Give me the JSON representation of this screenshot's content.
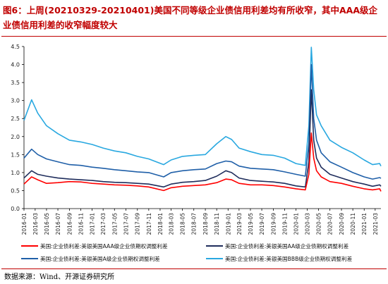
{
  "title": "图6：上周(20210329-20210401)美国不同等级企业债信用利差均有所收窄，其中AAA级企业债信用利差的收窄幅度较大",
  "source": "数据来源：Wind、开源证券研究所",
  "chart_data": {
    "type": "line",
    "ylim": [
      0,
      4.5
    ],
    "yticks": [
      "0.0",
      "0.5",
      "1.0",
      "1.5",
      "2.0",
      "2.5",
      "3.0",
      "3.5",
      "4.0",
      "4.5"
    ],
    "xticks": [
      "2016-01",
      "2016-03",
      "2016-05",
      "2016-07",
      "2016-09",
      "2016-11",
      "2017-01",
      "2017-03",
      "2017-05",
      "2017-07",
      "2017-09",
      "2017-11",
      "2018-01",
      "2018-03",
      "2018-05",
      "2018-07",
      "2018-09",
      "2018-11",
      "2019-01",
      "2019-03",
      "2019-05",
      "2019-07",
      "2019-09",
      "2019-11",
      "2020-01",
      "2020-03",
      "2020-05",
      "2020-07",
      "2020-09",
      "2020-11",
      "2021-01",
      "2021-03"
    ],
    "x_range": [
      "2016-01-01",
      "2021-04-01"
    ],
    "grid": false,
    "legend_position": "bottom",
    "series": [
      {
        "name": "美国:企业债利差:美银美国AAA级企业债期权调整利差",
        "color": "#ff0000",
        "x": [
          "2016-01-01",
          "2016-02-11",
          "2016-03-15",
          "2016-05-01",
          "2016-07-01",
          "2016-09-01",
          "2016-11-01",
          "2017-01-01",
          "2017-03-01",
          "2017-05-01",
          "2017-07-01",
          "2017-09-01",
          "2017-11-01",
          "2018-01-20",
          "2018-03-01",
          "2018-05-01",
          "2018-07-01",
          "2018-09-01",
          "2018-11-01",
          "2018-12-20",
          "2019-01-20",
          "2019-03-01",
          "2019-05-01",
          "2019-07-01",
          "2019-09-01",
          "2019-11-01",
          "2020-01-01",
          "2020-02-20",
          "2020-03-10",
          "2020-03-23",
          "2020-04-05",
          "2020-04-20",
          "2020-05-15",
          "2020-07-01",
          "2020-09-01",
          "2020-11-01",
          "2021-01-01",
          "2021-02-15",
          "2021-03-25",
          "2021-04-01"
        ],
        "values": [
          0.68,
          0.88,
          0.8,
          0.7,
          0.72,
          0.75,
          0.74,
          0.7,
          0.68,
          0.66,
          0.65,
          0.63,
          0.6,
          0.5,
          0.58,
          0.62,
          0.64,
          0.66,
          0.72,
          0.82,
          0.8,
          0.7,
          0.66,
          0.66,
          0.64,
          0.6,
          0.55,
          0.52,
          0.95,
          2.1,
          1.4,
          1.05,
          0.88,
          0.75,
          0.7,
          0.62,
          0.55,
          0.52,
          0.55,
          0.48
        ]
      },
      {
        "name": "美国:企业债利差:美银美国AA级企业债期权调整利差",
        "color": "#1f2d5c",
        "x": [
          "2016-01-01",
          "2016-02-11",
          "2016-03-15",
          "2016-05-01",
          "2016-07-01",
          "2016-09-01",
          "2016-11-01",
          "2017-01-01",
          "2017-03-01",
          "2017-05-01",
          "2017-07-01",
          "2017-09-01",
          "2017-11-01",
          "2018-01-20",
          "2018-03-01",
          "2018-05-01",
          "2018-07-01",
          "2018-09-01",
          "2018-11-01",
          "2018-12-20",
          "2019-01-20",
          "2019-03-01",
          "2019-05-01",
          "2019-07-01",
          "2019-09-01",
          "2019-11-01",
          "2020-01-01",
          "2020-02-20",
          "2020-03-10",
          "2020-03-23",
          "2020-04-05",
          "2020-04-20",
          "2020-05-15",
          "2020-07-01",
          "2020-09-01",
          "2020-11-01",
          "2021-01-01",
          "2021-02-15",
          "2021-03-25",
          "2021-04-01"
        ],
        "values": [
          0.85,
          1.05,
          0.95,
          0.9,
          0.85,
          0.82,
          0.8,
          0.78,
          0.75,
          0.73,
          0.72,
          0.7,
          0.68,
          0.6,
          0.68,
          0.73,
          0.75,
          0.78,
          0.9,
          1.05,
          1.0,
          0.85,
          0.78,
          0.76,
          0.74,
          0.7,
          0.63,
          0.6,
          1.3,
          3.3,
          1.9,
          1.4,
          1.15,
          0.95,
          0.85,
          0.75,
          0.68,
          0.62,
          0.66,
          0.62
        ]
      },
      {
        "name": "美国:企业债利差:美银美国A级企业债期权调整利差",
        "color": "#1f5fa8",
        "x": [
          "2016-01-01",
          "2016-02-11",
          "2016-03-15",
          "2016-05-01",
          "2016-07-01",
          "2016-09-01",
          "2016-11-01",
          "2017-01-01",
          "2017-03-01",
          "2017-05-01",
          "2017-07-01",
          "2017-09-01",
          "2017-11-01",
          "2018-01-20",
          "2018-03-01",
          "2018-05-01",
          "2018-07-01",
          "2018-09-01",
          "2018-11-01",
          "2018-12-20",
          "2019-01-20",
          "2019-03-01",
          "2019-05-01",
          "2019-07-01",
          "2019-09-01",
          "2019-11-01",
          "2020-01-01",
          "2020-02-20",
          "2020-03-10",
          "2020-03-23",
          "2020-04-05",
          "2020-04-20",
          "2020-05-15",
          "2020-07-01",
          "2020-09-01",
          "2020-11-01",
          "2021-01-01",
          "2021-02-15",
          "2021-03-25",
          "2021-04-01"
        ],
        "values": [
          1.4,
          1.65,
          1.5,
          1.38,
          1.3,
          1.22,
          1.2,
          1.15,
          1.12,
          1.08,
          1.05,
          1.02,
          1.0,
          0.88,
          1.0,
          1.05,
          1.08,
          1.1,
          1.25,
          1.32,
          1.3,
          1.18,
          1.12,
          1.1,
          1.08,
          1.02,
          0.95,
          0.9,
          1.8,
          4.0,
          2.5,
          1.9,
          1.55,
          1.3,
          1.15,
          1.0,
          0.88,
          0.82,
          0.86,
          0.84
        ]
      },
      {
        "name": "美国:企业债利差:美银美国BBB级企业债期权调整利差",
        "color": "#29a8e0",
        "x": [
          "2016-01-01",
          "2016-02-11",
          "2016-03-15",
          "2016-05-01",
          "2016-07-01",
          "2016-09-01",
          "2016-11-01",
          "2017-01-01",
          "2017-03-01",
          "2017-05-01",
          "2017-07-01",
          "2017-09-01",
          "2017-11-01",
          "2018-01-20",
          "2018-03-01",
          "2018-05-01",
          "2018-07-01",
          "2018-09-01",
          "2018-11-01",
          "2018-12-20",
          "2019-01-20",
          "2019-03-01",
          "2019-05-01",
          "2019-07-01",
          "2019-09-01",
          "2019-11-01",
          "2020-01-01",
          "2020-02-20",
          "2020-03-10",
          "2020-03-23",
          "2020-04-05",
          "2020-04-20",
          "2020-05-15",
          "2020-07-01",
          "2020-09-01",
          "2020-11-01",
          "2021-01-01",
          "2021-02-15",
          "2021-03-25",
          "2021-04-01"
        ],
        "values": [
          2.45,
          3.02,
          2.65,
          2.3,
          2.08,
          1.9,
          1.85,
          1.78,
          1.68,
          1.6,
          1.55,
          1.45,
          1.38,
          1.22,
          1.35,
          1.45,
          1.48,
          1.5,
          1.8,
          2.0,
          1.92,
          1.68,
          1.58,
          1.5,
          1.48,
          1.4,
          1.25,
          1.2,
          2.3,
          4.48,
          3.3,
          2.6,
          2.3,
          1.9,
          1.7,
          1.55,
          1.35,
          1.22,
          1.25,
          1.18
        ]
      }
    ]
  }
}
